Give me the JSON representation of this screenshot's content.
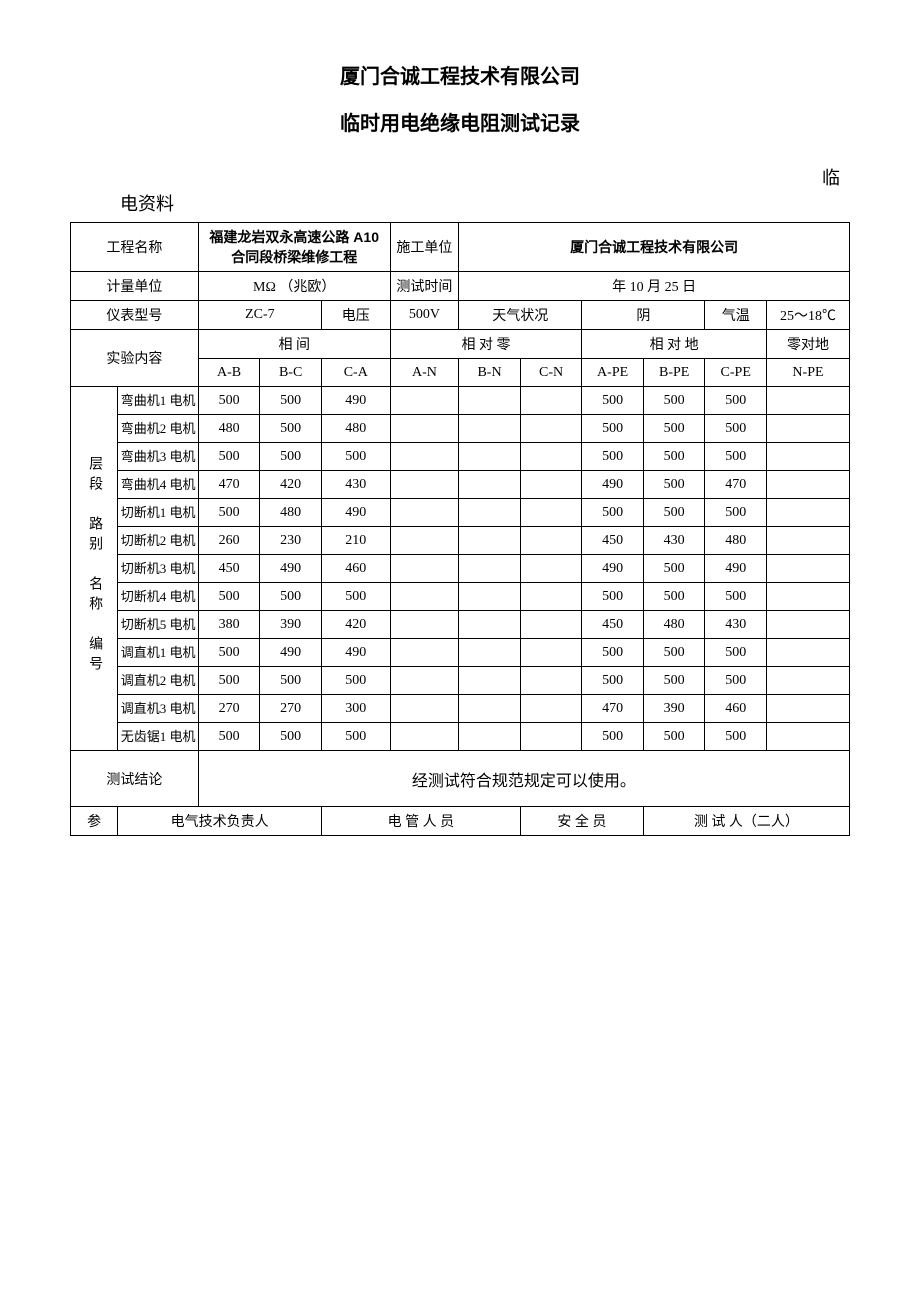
{
  "titles": {
    "company": "厦门合诚工程技术有限公司",
    "doc": "临时用电绝缘电阻测试记录"
  },
  "upper_note": {
    "right": "临",
    "left": "电资料"
  },
  "header": {
    "project_label": "工程名称",
    "project_value": "福建龙岩双永高速公路 A10 合同段桥梁维修工程",
    "contractor_label": "施工单位",
    "contractor_value": "厦门合诚工程技术有限公司",
    "unit_label": "计量单位",
    "unit_value": "MΩ （兆欧）",
    "test_time_label": "测试时间",
    "test_time_value": "年   10 月 25 日",
    "instrument_label": "仪表型号",
    "instrument_value": "ZC-7",
    "voltage_label": "电压",
    "voltage_value": "500V",
    "weather_label": "天气状况",
    "weather_value": "阴",
    "temp_label": "气温",
    "temp_value": "25～18℃",
    "exp_label": "实验内容",
    "group1": "相   间",
    "group2": "相 对 零",
    "group3": "相 对 地",
    "group4": "零对地",
    "cols": [
      "A-B",
      "B-C",
      "C-A",
      "A-N",
      "B-N",
      "C-N",
      "A-PE",
      "B-PE",
      "C-PE",
      "N-PE"
    ],
    "side_label": "层段　路别　名称　编号"
  },
  "rows": [
    {
      "name": "弯曲机1 电机",
      "ab": "500",
      "bc": "500",
      "ca": "490",
      "an": "",
      "bn": "",
      "cn": "",
      "ape": "500",
      "bpe": "500",
      "cpe": "500",
      "npe": ""
    },
    {
      "name": "弯曲机2 电机",
      "ab": "480",
      "bc": "500",
      "ca": "480",
      "an": "",
      "bn": "",
      "cn": "",
      "ape": "500",
      "bpe": "500",
      "cpe": "500",
      "npe": ""
    },
    {
      "name": "弯曲机3 电机",
      "ab": "500",
      "bc": "500",
      "ca": "500",
      "an": "",
      "bn": "",
      "cn": "",
      "ape": "500",
      "bpe": "500",
      "cpe": "500",
      "npe": ""
    },
    {
      "name": "弯曲机4 电机",
      "ab": "470",
      "bc": "420",
      "ca": "430",
      "an": "",
      "bn": "",
      "cn": "",
      "ape": "490",
      "bpe": "500",
      "cpe": "470",
      "npe": ""
    },
    {
      "name": "切断机1 电机",
      "ab": "500",
      "bc": "480",
      "ca": "490",
      "an": "",
      "bn": "",
      "cn": "",
      "ape": "500",
      "bpe": "500",
      "cpe": "500",
      "npe": ""
    },
    {
      "name": "切断机2 电机",
      "ab": "260",
      "bc": "230",
      "ca": "210",
      "an": "",
      "bn": "",
      "cn": "",
      "ape": "450",
      "bpe": "430",
      "cpe": "480",
      "npe": ""
    },
    {
      "name": "切断机3 电机",
      "ab": "450",
      "bc": "490",
      "ca": "460",
      "an": "",
      "bn": "",
      "cn": "",
      "ape": "490",
      "bpe": "500",
      "cpe": "490",
      "npe": ""
    },
    {
      "name": "切断机4 电机",
      "ab": "500",
      "bc": "500",
      "ca": "500",
      "an": "",
      "bn": "",
      "cn": "",
      "ape": "500",
      "bpe": "500",
      "cpe": "500",
      "npe": ""
    },
    {
      "name": "切断机5 电机",
      "ab": "380",
      "bc": "390",
      "ca": "420",
      "an": "",
      "bn": "",
      "cn": "",
      "ape": "450",
      "bpe": "480",
      "cpe": "430",
      "npe": ""
    },
    {
      "name": "调直机1 电机",
      "ab": "500",
      "bc": "490",
      "ca": "490",
      "an": "",
      "bn": "",
      "cn": "",
      "ape": "500",
      "bpe": "500",
      "cpe": "500",
      "npe": ""
    },
    {
      "name": "调直机2 电机",
      "ab": "500",
      "bc": "500",
      "ca": "500",
      "an": "",
      "bn": "",
      "cn": "",
      "ape": "500",
      "bpe": "500",
      "cpe": "500",
      "npe": ""
    },
    {
      "name": "调直机3 电机",
      "ab": "270",
      "bc": "270",
      "ca": "300",
      "an": "",
      "bn": "",
      "cn": "",
      "ape": "470",
      "bpe": "390",
      "cpe": "460",
      "npe": ""
    },
    {
      "name": "无齿锯1 电机",
      "ab": "500",
      "bc": "500",
      "ca": "500",
      "an": "",
      "bn": "",
      "cn": "",
      "ape": "500",
      "bpe": "500",
      "cpe": "500",
      "npe": ""
    }
  ],
  "conclusion": {
    "label": "测试结论",
    "value": "经测试符合规范规定可以使用。"
  },
  "footer": {
    "col0": "参",
    "col1": "电气技术负责人",
    "col2": "电 管 人 员",
    "col3": "安 全 员",
    "col4": "测 试 人（二人）"
  }
}
